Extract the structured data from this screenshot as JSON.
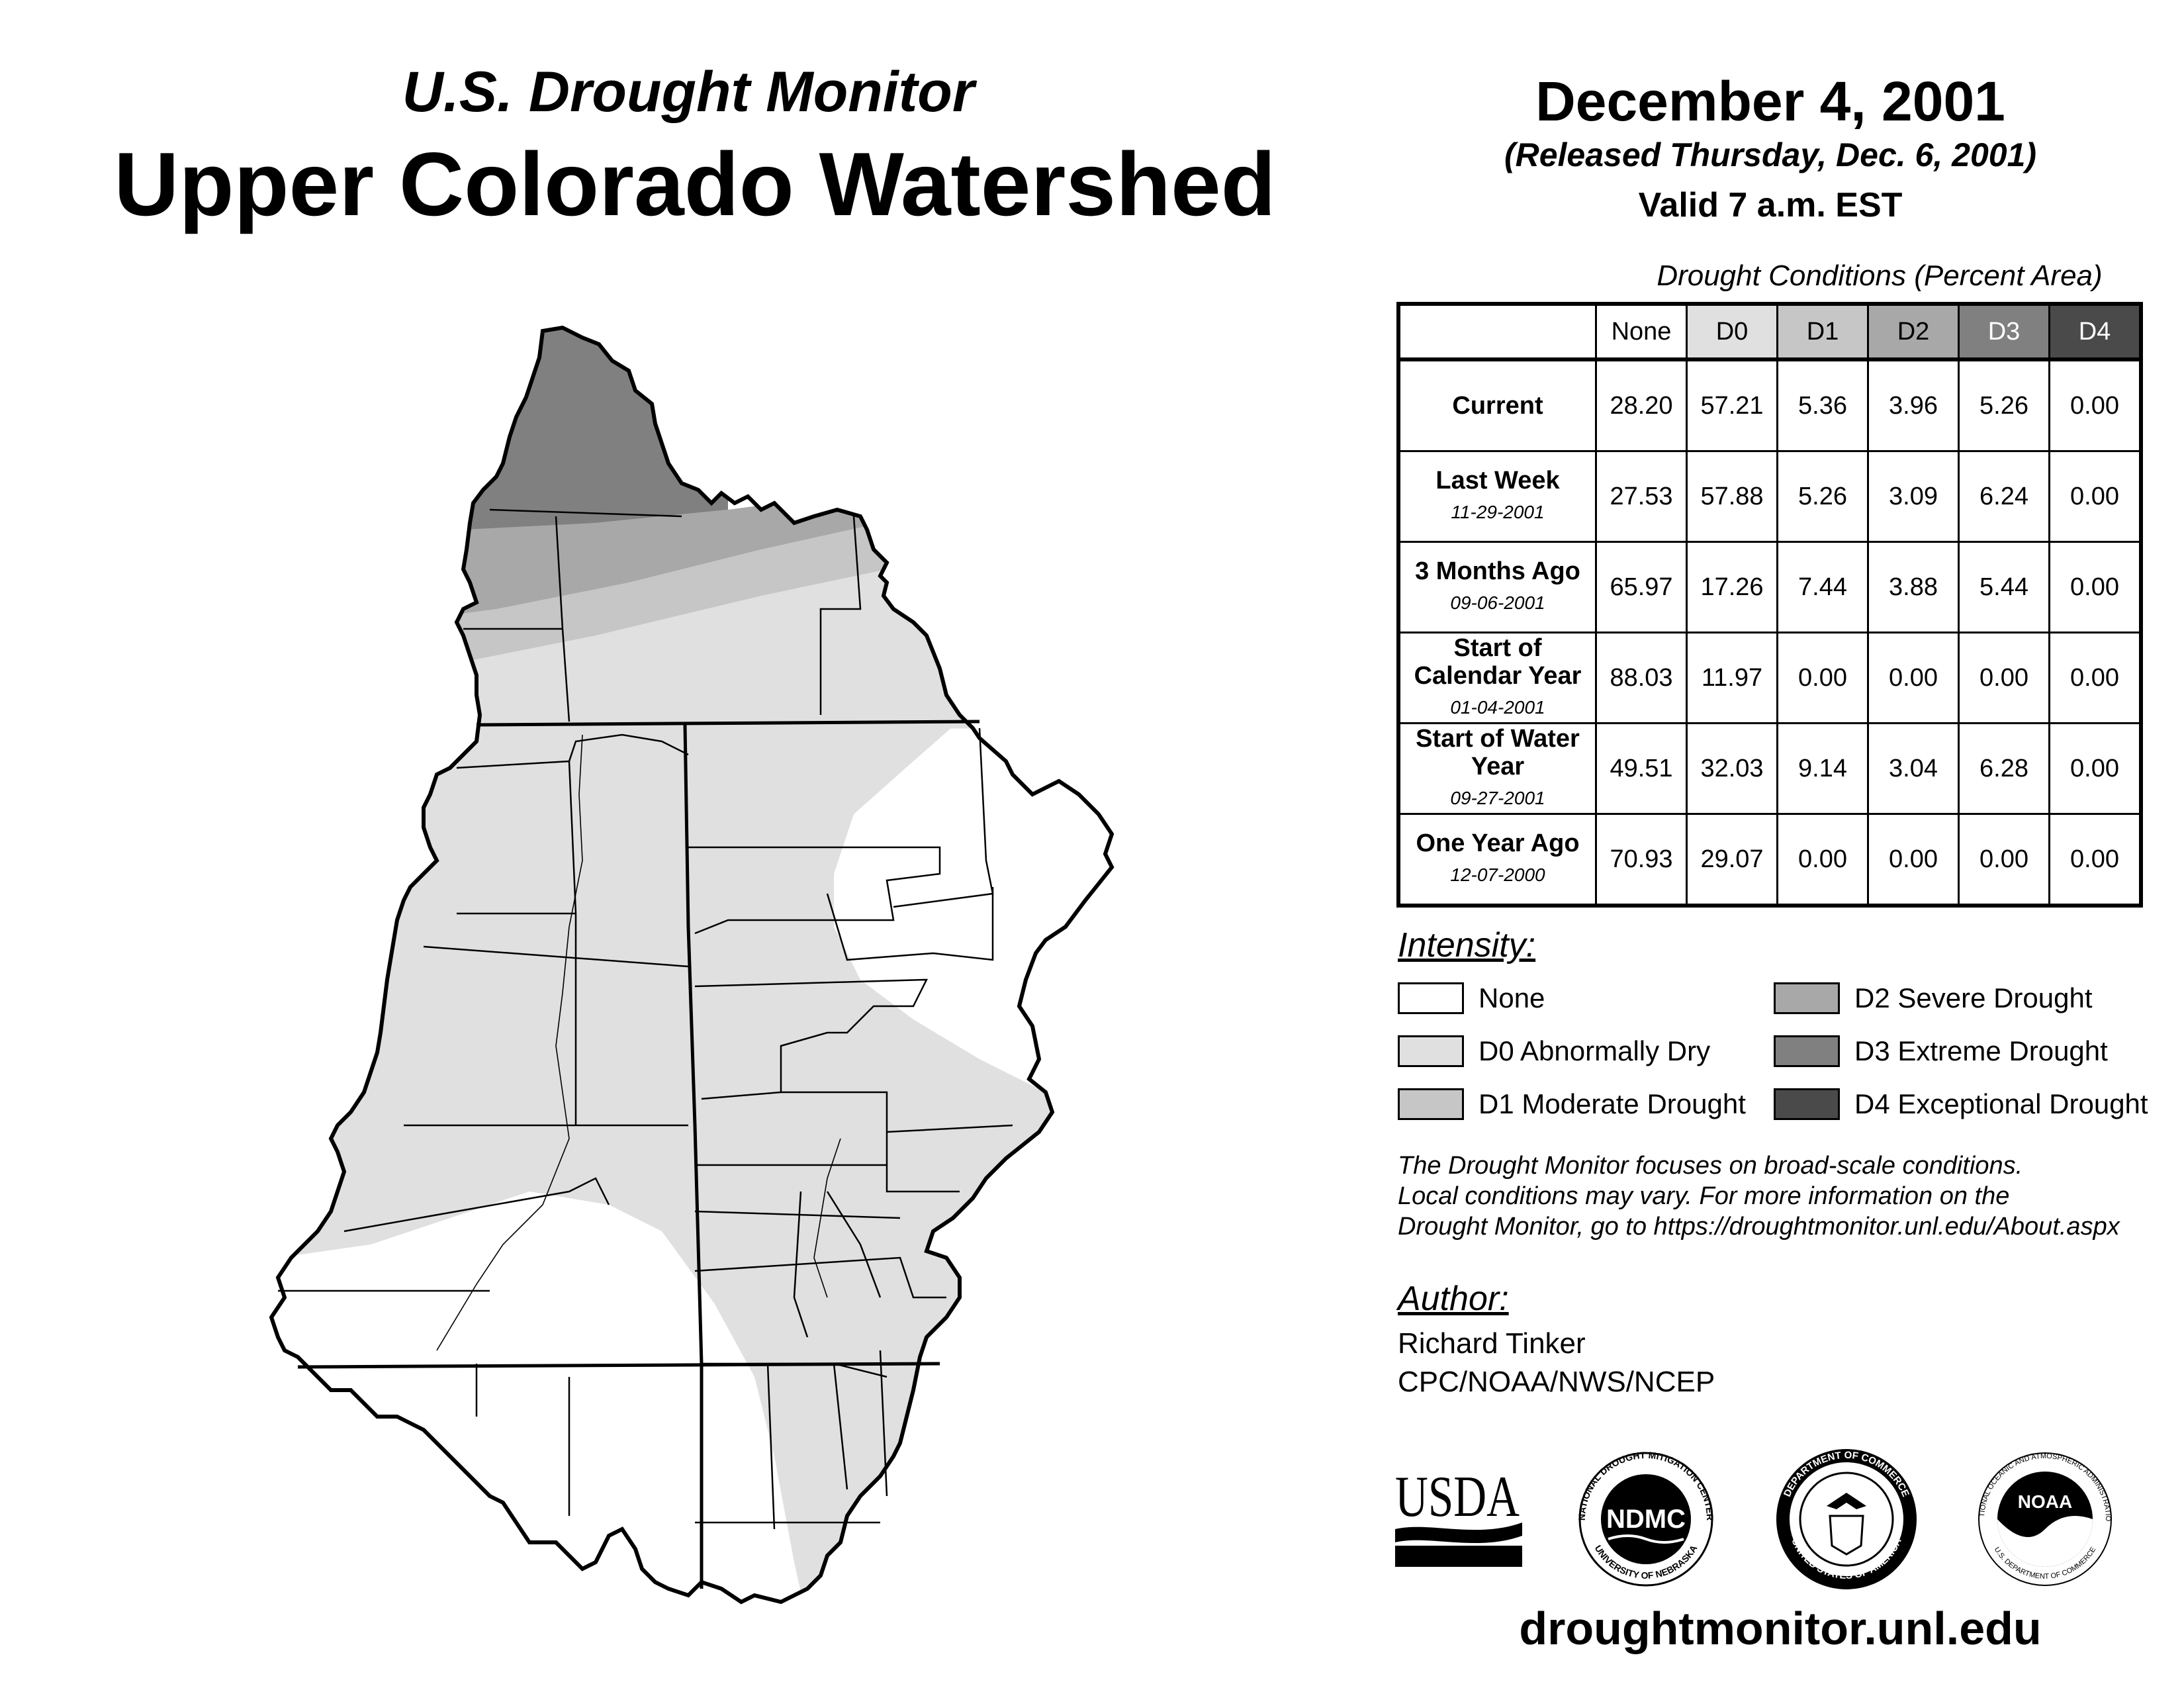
{
  "header": {
    "subtitle": "U.S. Drought Monitor",
    "title": "Upper Colorado Watershed",
    "date": "December 4, 2001",
    "released": "(Released Thursday, Dec. 6, 2001)",
    "valid": "Valid 7 a.m. EST"
  },
  "conditions": {
    "caption": "Drought Conditions (Percent Area)",
    "columns": [
      "None",
      "D0",
      "D1",
      "D2",
      "D3",
      "D4"
    ],
    "rows": [
      {
        "label": "Current",
        "date": "",
        "values": [
          "28.20",
          "57.21",
          "5.36",
          "3.96",
          "5.26",
          "0.00"
        ]
      },
      {
        "label": "Last Week",
        "date": "11-29-2001",
        "values": [
          "27.53",
          "57.88",
          "5.26",
          "3.09",
          "6.24",
          "0.00"
        ]
      },
      {
        "label": "3 Months Ago",
        "date": "09-06-2001",
        "values": [
          "65.97",
          "17.26",
          "7.44",
          "3.88",
          "5.44",
          "0.00"
        ]
      },
      {
        "label": "Start of Calendar Year",
        "date": "01-04-2001",
        "values": [
          "88.03",
          "11.97",
          "0.00",
          "0.00",
          "0.00",
          "0.00"
        ]
      },
      {
        "label": "Start of Water Year",
        "date": "09-27-2001",
        "values": [
          "49.51",
          "32.03",
          "9.14",
          "3.04",
          "6.28",
          "0.00"
        ]
      },
      {
        "label": "One Year Ago",
        "date": "12-07-2000",
        "values": [
          "70.93",
          "29.07",
          "0.00",
          "0.00",
          "0.00",
          "0.00"
        ]
      }
    ]
  },
  "legend": {
    "title": "Intensity:",
    "items": [
      {
        "label": "None",
        "color": "#ffffff"
      },
      {
        "label": "D0 Abnormally Dry",
        "color": "#e0e0e0"
      },
      {
        "label": "D1 Moderate Drought",
        "color": "#c6c6c6"
      },
      {
        "label": "D2 Severe Drought",
        "color": "#a8a8a8"
      },
      {
        "label": "D3 Extreme Drought",
        "color": "#808080"
      },
      {
        "label": "D4 Exceptional Drought",
        "color": "#4a4a4a"
      }
    ],
    "header_colors": [
      "#ffffff",
      "#e0e0e0",
      "#c6c6c6",
      "#a8a8a8",
      "#808080",
      "#4a4a4a"
    ]
  },
  "note": {
    "line1": "The Drought Monitor focuses on broad-scale conditions.",
    "line2": "Local conditions may vary. For more information on the",
    "line3": "Drought Monitor, go to https://droughtmonitor.unl.edu/About.aspx"
  },
  "author": {
    "title": "Author:",
    "name": "Richard Tinker",
    "org": "CPC/NOAA/NWS/NCEP"
  },
  "logos": {
    "usda": "USDA",
    "ndmc": "NDMC",
    "ndmc_ring_top": "NATIONAL DROUGHT MITIGATION CENTER",
    "ndmc_ring_bottom": "UNIVERSITY OF NEBRASKA",
    "doc_ring_top": "DEPARTMENT OF COMMERCE",
    "doc_ring_bottom": "UNITED STATES OF AMERICA",
    "noaa": "NOAA",
    "noaa_ring_top": "NATIONAL OCEANIC AND ATMOSPHERIC ADMINISTRATION",
    "noaa_ring_bottom": "U.S. DEPARTMENT OF COMMERCE"
  },
  "footer": {
    "url": "droughtmonitor.unl.edu"
  }
}
